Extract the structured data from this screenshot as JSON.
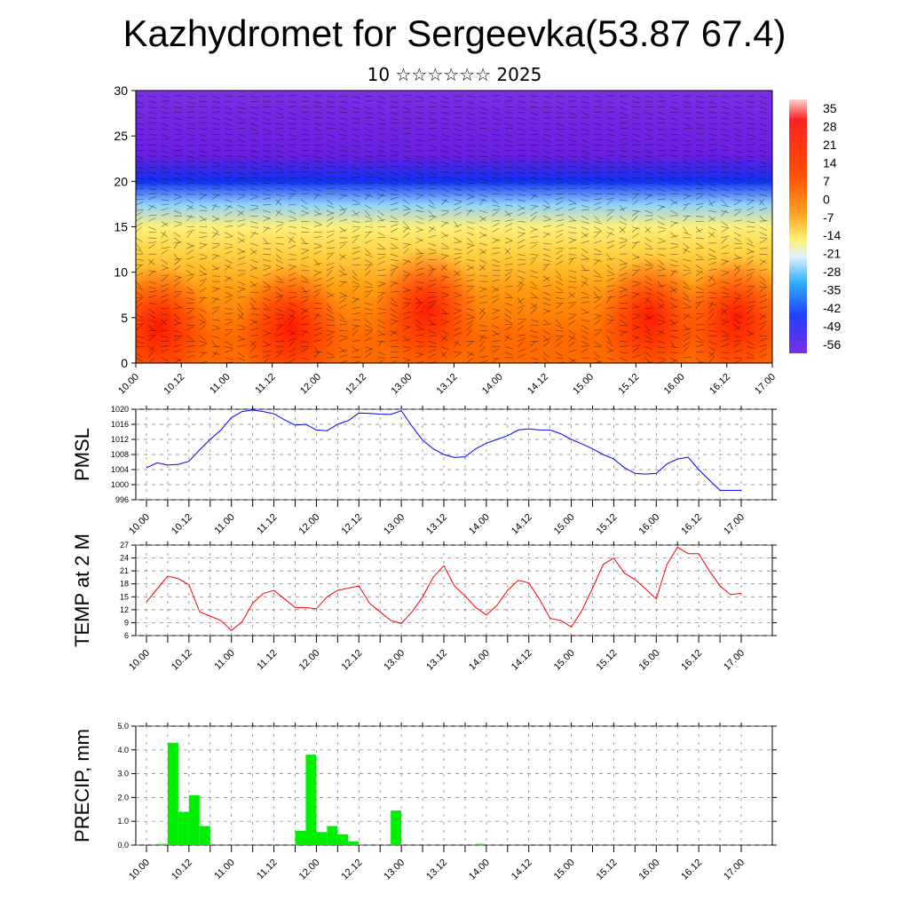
{
  "page": {
    "title": "Kazhydromet for Sergeevka(53.87 67.4)",
    "subtitle": "10 ☆☆☆☆☆☆ 2025"
  },
  "chart_data": [
    {
      "type": "heatmap",
      "name": "cross-section",
      "ylim": [
        0,
        30
      ],
      "yticks": [
        0,
        5,
        10,
        15,
        20,
        25,
        30
      ],
      "xticks": [
        "10.00",
        "10.12",
        "11.00",
        "11.12",
        "12.00",
        "12.12",
        "13.00",
        "13.12",
        "14.00",
        "14.12",
        "15.00",
        "15.12",
        "16.00",
        "16.12",
        "17.00"
      ],
      "colorbar": {
        "labels": [
          "35",
          "28",
          "21",
          "14",
          "7",
          "0",
          "-7",
          "-14",
          "-21",
          "-28",
          "-35",
          "-42",
          "-49",
          "-56"
        ]
      },
      "contours": [
        {
          "y": 23,
          "color": "#6a1fe0"
        },
        {
          "y": 20,
          "color": "#1030f0"
        },
        {
          "y": 17.5,
          "color": "#8fd0ff"
        },
        {
          "y": 15,
          "color": "#fff07a"
        },
        {
          "y": 12,
          "color": "#ffd040"
        },
        {
          "y": 8,
          "color": "#ff9a10"
        },
        {
          "y": 3,
          "color": "#ff6a00"
        }
      ],
      "hotspots": [
        {
          "x": 0.5,
          "y": 4,
          "color": "#ff2000"
        },
        {
          "x": 6.4,
          "y": 6,
          "color": "#ff1800"
        },
        {
          "x": 11.3,
          "y": 5,
          "color": "#ff1a00"
        },
        {
          "x": 13.2,
          "y": 5,
          "color": "#ff2800"
        },
        {
          "x": 3.4,
          "y": 4,
          "color": "#ff4a00"
        }
      ]
    },
    {
      "type": "line",
      "ylabel": "PMSL",
      "ylim": [
        996,
        1020
      ],
      "yticks": [
        996,
        1000,
        1004,
        1008,
        1012,
        1016,
        1020
      ],
      "xticks": [
        "10.00",
        "10.12",
        "11.00",
        "11.12",
        "12.00",
        "12.12",
        "13.00",
        "13.12",
        "14.00",
        "14.12",
        "15.00",
        "15.12",
        "16.00",
        "16.12",
        "17.00"
      ],
      "color": "#0000ff",
      "x": [
        0,
        0.25,
        0.5,
        0.75,
        1,
        1.25,
        1.5,
        1.75,
        2,
        2.25,
        2.5,
        2.75,
        3,
        3.25,
        3.5,
        3.75,
        4,
        4.25,
        4.5,
        4.75,
        5,
        5.25,
        5.5,
        5.75,
        6,
        6.25,
        6.5,
        6.75,
        7,
        7.25,
        7.5,
        7.75,
        8,
        8.25,
        8.5,
        8.75,
        9,
        9.25,
        9.5,
        9.75,
        10,
        10.25,
        10.5,
        10.75,
        11,
        11.25,
        11.5,
        11.75,
        12,
        12.25,
        12.5,
        12.75,
        13,
        13.25,
        13.5,
        13.75,
        14
      ],
      "values": [
        1004.5,
        1005.8,
        1005.2,
        1005.4,
        1006.2,
        1009.2,
        1012.0,
        1014.5,
        1017.8,
        1019.4,
        1019.8,
        1019.4,
        1018.8,
        1017.2,
        1015.8,
        1016.0,
        1014.5,
        1014.3,
        1016.0,
        1017.0,
        1019.0,
        1018.9,
        1018.7,
        1018.6,
        1019.6,
        1015.5,
        1011.8,
        1009.5,
        1008.0,
        1007.2,
        1007.4,
        1009.5,
        1011.0,
        1012.0,
        1013.0,
        1014.5,
        1014.8,
        1014.5,
        1014.5,
        1013.5,
        1012.0,
        1010.8,
        1009.5,
        1008.0,
        1006.8,
        1004.5,
        1003.0,
        1002.8,
        1003.0,
        1005.5,
        1006.8,
        1007.3,
        1004.0,
        1001.2,
        998.5,
        998.5,
        998.5
      ]
    },
    {
      "type": "line",
      "ylabel": "TEMP at 2 M",
      "ylim": [
        6,
        27
      ],
      "yticks": [
        6,
        9,
        12,
        15,
        18,
        21,
        24,
        27
      ],
      "xticks": [
        "10.00",
        "10.12",
        "11.00",
        "11.12",
        "12.00",
        "12.12",
        "13.00",
        "13.12",
        "14.00",
        "14.12",
        "15.00",
        "15.12",
        "16.00",
        "16.12",
        "17.00"
      ],
      "color": "#ff0000",
      "x": [
        0,
        0.25,
        0.5,
        0.75,
        1,
        1.25,
        1.5,
        1.75,
        2,
        2.25,
        2.5,
        2.75,
        3,
        3.25,
        3.5,
        3.75,
        4,
        4.25,
        4.5,
        4.75,
        5,
        5.25,
        5.5,
        5.75,
        6,
        6.25,
        6.5,
        6.75,
        7,
        7.25,
        7.5,
        7.75,
        8,
        8.25,
        8.5,
        8.75,
        9,
        9.25,
        9.5,
        9.75,
        10,
        10.25,
        10.5,
        10.75,
        11,
        11.25,
        11.5,
        11.75,
        12,
        12.25,
        12.5,
        12.75,
        13,
        13.25,
        13.5,
        13.75,
        14
      ],
      "values": [
        13.8,
        16.8,
        19.8,
        19.2,
        17.8,
        11.5,
        10.5,
        9.5,
        7.2,
        9.2,
        13.5,
        15.8,
        16.5,
        14.5,
        12.5,
        12.5,
        12.2,
        15.0,
        16.5,
        17.0,
        17.5,
        13.5,
        11.5,
        9.5,
        8.8,
        11.5,
        15.0,
        19.5,
        22.2,
        17.5,
        15.2,
        12.5,
        10.8,
        13.0,
        16.5,
        18.8,
        18.2,
        14.5,
        10.0,
        9.5,
        8.0,
        11.8,
        17.0,
        22.5,
        24.0,
        20.5,
        19.0,
        16.8,
        14.5,
        22.5,
        26.5,
        25.0,
        25.0,
        21.0,
        17.5,
        15.5,
        15.8
      ]
    },
    {
      "type": "bar",
      "ylabel": "PRECIP, mm",
      "ylim": [
        0,
        5
      ],
      "yticks": [
        "0.0",
        "1.0",
        "2.0",
        "3.0",
        "4.0",
        "5.0"
      ],
      "xticks": [
        "10.00",
        "10.12",
        "11.00",
        "11.12",
        "12.00",
        "12.12",
        "13.00",
        "13.12",
        "14.00",
        "14.12",
        "15.00",
        "15.12",
        "16.00",
        "16.12",
        "17.00"
      ],
      "color": "#00ee00",
      "x": [
        0.375,
        0.625,
        0.875,
        1.125,
        1.375,
        1.625,
        3.625,
        3.875,
        4.125,
        4.375,
        4.625,
        4.875,
        5.875,
        7.875
      ],
      "values": [
        0.05,
        4.3,
        1.4,
        2.1,
        0.8,
        0.0,
        0.6,
        3.8,
        0.55,
        0.8,
        0.45,
        0.15,
        1.45,
        0.05
      ]
    }
  ]
}
